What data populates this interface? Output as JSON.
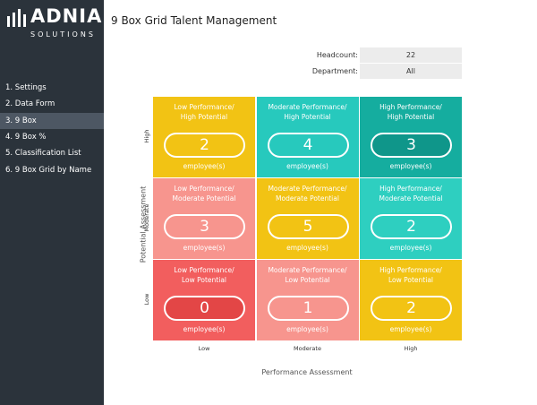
{
  "sidebar": {
    "logo": "ADNIA",
    "logo_sub": "SOLUTIONS",
    "menu": [
      "1. Settings",
      "2. Data Form",
      "3. 9 Box",
      "4. 9 Box %",
      "5. Classification List",
      "6. 9 Box Grid by Name"
    ]
  },
  "header": {
    "title": "9 Box Grid Talent Management",
    "fields": [
      {
        "label": "Headcount:",
        "value": 22
      },
      {
        "label": "Department:",
        "value": "All"
      }
    ]
  },
  "grid": {
    "y_axis_title": "Potential Assessment",
    "y_labels": [
      "High",
      "Moderate",
      "Low"
    ],
    "x_axis_title": "Performance Assessment",
    "x_labels": [
      "Low",
      "Moderate",
      "High"
    ],
    "cells": [
      [
        {
          "title": [
            "Low Performance/",
            "High Potential"
          ],
          "count": 2,
          "unit": "employee(s)"
        },
        {
          "title": [
            "Moderate Performance/",
            "High Potential"
          ],
          "count": 4,
          "unit": "employee(s)"
        },
        {
          "title": [
            "High Performance/",
            "High Potential"
          ],
          "count": 3,
          "unit": "employee(s)"
        }
      ],
      [
        {
          "title": [
            "Low Performance/",
            "Moderate Potential"
          ],
          "count": 3,
          "unit": "employee(s)"
        },
        {
          "title": [
            "Moderate Performance/",
            "Moderate Potential"
          ],
          "count": 5,
          "unit": "employee(s)"
        },
        {
          "title": [
            "High Performance/",
            "Moderate Potential"
          ],
          "count": 2,
          "unit": "employee(s)"
        }
      ],
      [
        {
          "title": [
            "Low Performance/",
            "Low Potential"
          ],
          "count": 0,
          "unit": "employee(s)"
        },
        {
          "title": [
            "Moderate Performance/",
            "Low Potential"
          ],
          "count": 1,
          "unit": "employee(s)"
        },
        {
          "title": [
            "High Performance/",
            "Low Potential"
          ],
          "count": 2,
          "unit": "employee(s)"
        }
      ]
    ]
  }
}
